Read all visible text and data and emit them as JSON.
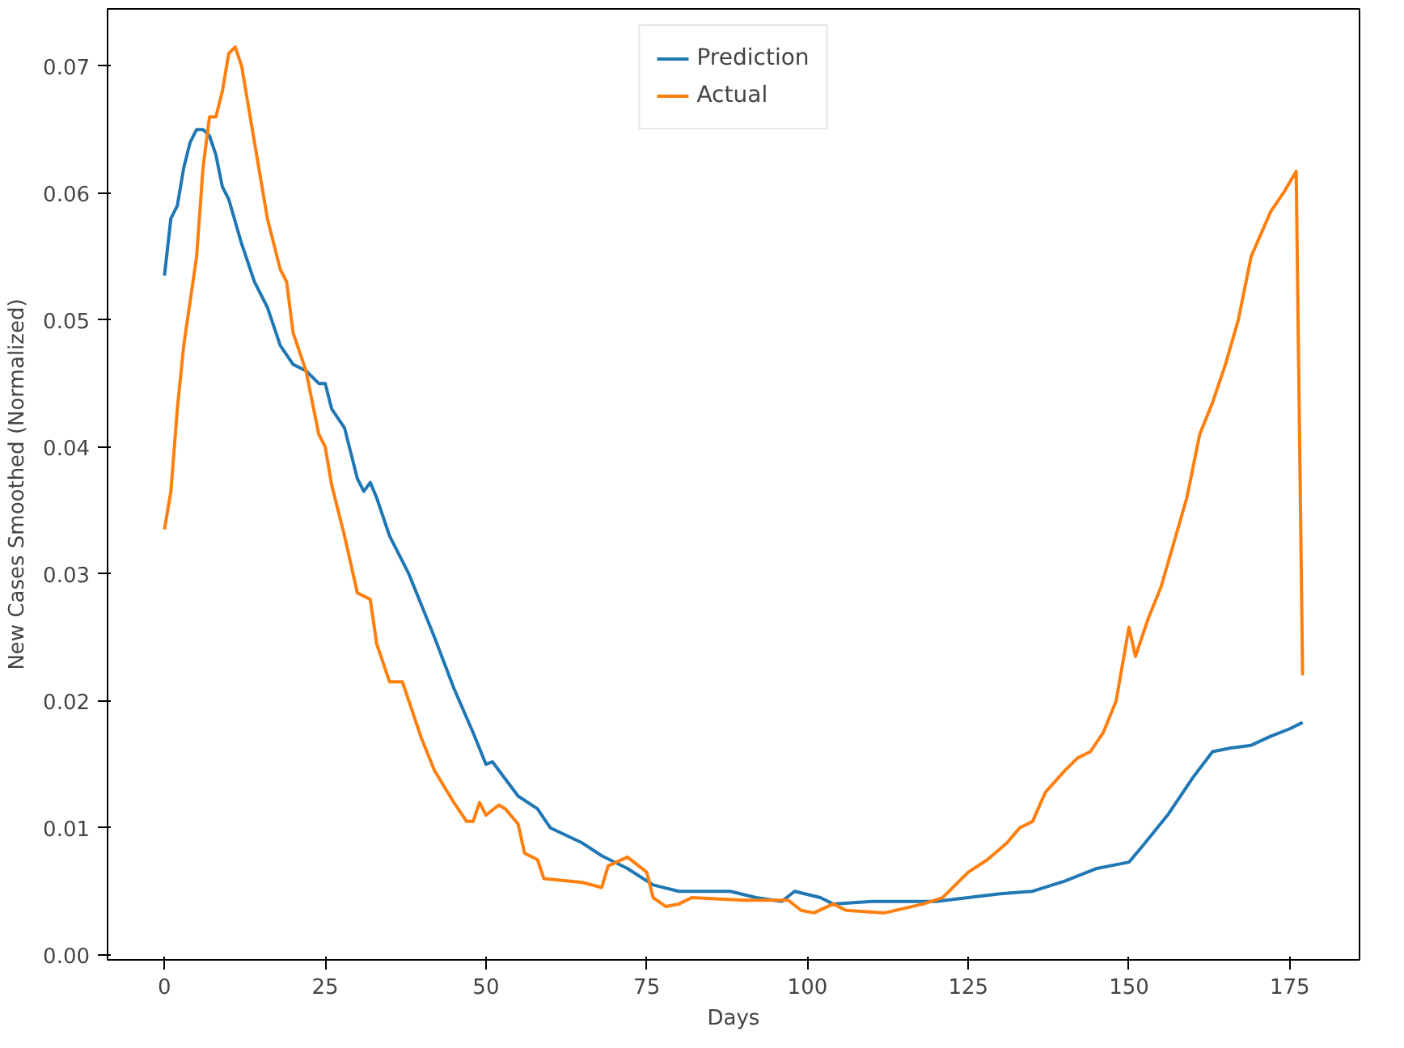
{
  "chart_data": {
    "type": "line",
    "xlabel": "Days",
    "ylabel": "New Cases Smoothed (Normalized)",
    "xlim": [
      -8.85,
      185.85
    ],
    "ylim": [
      -0.0004,
      0.0745
    ],
    "xticks": [
      0,
      25,
      50,
      75,
      100,
      125,
      150,
      175
    ],
    "yticks": [
      {
        "value": 0,
        "label": "0.00"
      },
      {
        "value": 0.01,
        "label": "0.01"
      },
      {
        "value": 0.02,
        "label": "0.02"
      },
      {
        "value": 0.03,
        "label": "0.03"
      },
      {
        "value": 0.04,
        "label": "0.04"
      },
      {
        "value": 0.05,
        "label": "0.05"
      },
      {
        "value": 0.06,
        "label": "0.06"
      },
      {
        "value": 0.07,
        "label": "0.07"
      }
    ],
    "grid": false,
    "legend": "top",
    "line_style": "solid",
    "marker": "none",
    "series": [
      {
        "name": "Prediction",
        "color": "#1f77b4",
        "x": [
          0,
          1,
          2,
          3,
          4,
          5,
          6,
          7,
          8,
          9,
          10,
          12,
          14,
          16,
          18,
          20,
          22,
          24,
          25,
          26,
          28,
          30,
          31,
          32,
          33,
          35,
          38,
          40,
          42,
          45,
          48,
          50,
          51,
          55,
          58,
          60,
          65,
          68,
          72,
          76,
          80,
          85,
          88,
          92,
          96,
          98,
          102,
          104,
          110,
          120,
          125,
          130,
          135,
          140,
          145,
          150,
          152,
          156,
          160,
          163,
          166,
          169,
          172,
          175,
          177
        ],
        "values": [
          0.0535,
          0.058,
          0.059,
          0.062,
          0.064,
          0.065,
          0.065,
          0.0645,
          0.063,
          0.0605,
          0.0595,
          0.056,
          0.053,
          0.051,
          0.048,
          0.0465,
          0.046,
          0.045,
          0.045,
          0.043,
          0.0415,
          0.0375,
          0.0365,
          0.0372,
          0.036,
          0.033,
          0.03,
          0.0275,
          0.025,
          0.021,
          0.0175,
          0.015,
          0.0152,
          0.0125,
          0.0115,
          0.01,
          0.0088,
          0.0078,
          0.0068,
          0.0055,
          0.005,
          0.005,
          0.005,
          0.0045,
          0.0042,
          0.005,
          0.0045,
          0.004,
          0.0042,
          0.0042,
          0.0045,
          0.0048,
          0.005,
          0.0058,
          0.0068,
          0.0073,
          0.0085,
          0.011,
          0.014,
          0.016,
          0.0163,
          0.0165,
          0.0172,
          0.0178,
          0.0183
        ]
      },
      {
        "name": "Actual",
        "color": "#ff7f0e",
        "x": [
          0,
          1,
          2,
          3,
          5,
          6,
          7,
          8,
          9,
          10,
          11,
          12,
          13,
          14,
          16,
          18,
          19,
          20,
          22,
          24,
          25,
          26,
          28,
          30,
          32,
          33,
          35,
          37,
          40,
          42,
          45,
          47,
          48,
          49,
          50,
          52,
          53,
          55,
          56,
          58,
          59,
          65,
          68,
          69,
          72,
          75,
          76,
          78,
          80,
          82,
          90,
          97,
          99,
          101,
          104,
          106,
          112,
          118,
          121,
          125,
          128,
          131,
          133,
          135,
          137,
          140,
          142,
          144,
          146,
          148,
          150,
          151,
          153,
          155,
          157,
          159,
          161,
          163,
          165,
          167,
          169,
          172,
          174,
          176,
          177
        ],
        "values": [
          0.0335,
          0.0365,
          0.043,
          0.048,
          0.055,
          0.062,
          0.066,
          0.066,
          0.068,
          0.071,
          0.0715,
          0.07,
          0.067,
          0.064,
          0.058,
          0.054,
          0.053,
          0.049,
          0.046,
          0.041,
          0.04,
          0.037,
          0.033,
          0.0285,
          0.028,
          0.0245,
          0.0215,
          0.0215,
          0.017,
          0.0145,
          0.012,
          0.0105,
          0.0105,
          0.012,
          0.011,
          0.0118,
          0.0115,
          0.0103,
          0.008,
          0.0075,
          0.006,
          0.0057,
          0.0053,
          0.007,
          0.0077,
          0.0065,
          0.0045,
          0.0038,
          0.004,
          0.0045,
          0.0043,
          0.0043,
          0.0035,
          0.0033,
          0.004,
          0.0035,
          0.0033,
          0.004,
          0.0045,
          0.0065,
          0.0075,
          0.0088,
          0.01,
          0.0105,
          0.0128,
          0.0145,
          0.0155,
          0.016,
          0.0175,
          0.02,
          0.0258,
          0.0235,
          0.0265,
          0.029,
          0.0325,
          0.036,
          0.041,
          0.0435,
          0.0465,
          0.05,
          0.055,
          0.0585,
          0.06,
          0.0617,
          0.022
        ]
      }
    ]
  }
}
